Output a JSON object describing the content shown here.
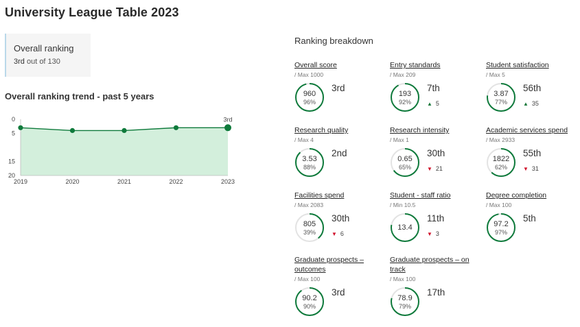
{
  "title": "University League Table 2023",
  "overall": {
    "label": "Overall ranking",
    "rank": "3rd",
    "out_of": "out of 130"
  },
  "trend": {
    "title": "Overall ranking trend - past 5 years"
  },
  "chart_data": {
    "type": "area",
    "x": [
      "2019",
      "2020",
      "2021",
      "2022",
      "2023"
    ],
    "values": [
      3,
      4,
      4,
      3,
      3
    ],
    "y_ticks": [
      "0",
      "5",
      "15",
      "20"
    ],
    "ylim": [
      0,
      20
    ],
    "y_inverted": true,
    "last_label": "3rd",
    "line_color": "#0e7a3b",
    "fill_color": "#d3efdc"
  },
  "breakdown": {
    "title": "Ranking breakdown",
    "metrics": [
      {
        "name": "Overall score",
        "max": "/ Max 1000",
        "value": "960",
        "pct": "96%",
        "pct_num": 96,
        "rank": "3rd",
        "change": "",
        "dir": ""
      },
      {
        "name": "Entry standards",
        "max": "/ Max 209",
        "value": "193",
        "pct": "92%",
        "pct_num": 92,
        "rank": "7th",
        "change": "5",
        "dir": "up"
      },
      {
        "name": "Student satisfaction",
        "max": "/ Max 5",
        "value": "3.87",
        "pct": "77%",
        "pct_num": 77,
        "rank": "56th",
        "change": "35",
        "dir": "up"
      },
      {
        "name": "Research quality",
        "max": "/ Max 4",
        "value": "3.53",
        "pct": "88%",
        "pct_num": 88,
        "rank": "2nd",
        "change": "",
        "dir": ""
      },
      {
        "name": "Research intensity",
        "max": "/ Max 1",
        "value": "0.65",
        "pct": "65%",
        "pct_num": 65,
        "rank": "30th",
        "change": "21",
        "dir": "down"
      },
      {
        "name": "Academic services spend",
        "max": "/ Max 2933",
        "value": "1822",
        "pct": "62%",
        "pct_num": 62,
        "rank": "55th",
        "change": "31",
        "dir": "down"
      },
      {
        "name": "Facilities spend",
        "max": "/ Max 2083",
        "value": "805",
        "pct": "39%",
        "pct_num": 39,
        "rank": "30th",
        "change": "6",
        "dir": "down"
      },
      {
        "name": "Student - staff ratio",
        "max": "/ Min 10.5",
        "value": "13.4",
        "pct": "",
        "pct_num": 78,
        "rank": "11th",
        "change": "3",
        "dir": "down"
      },
      {
        "name": "Degree completion",
        "max": "/ Max 100",
        "value": "97.2",
        "pct": "97%",
        "pct_num": 97,
        "rank": "5th",
        "change": "",
        "dir": ""
      },
      {
        "name": "Graduate prospects – outcomes",
        "max": "/ Max 100",
        "value": "90.2",
        "pct": "90%",
        "pct_num": 90,
        "rank": "3rd",
        "change": "",
        "dir": ""
      },
      {
        "name": "Graduate prospects – on track",
        "max": "/ Max 100",
        "value": "78.9",
        "pct": "79%",
        "pct_num": 79,
        "rank": "17th",
        "change": "",
        "dir": ""
      }
    ]
  },
  "colors": {
    "ring_green": "#0e7a3b",
    "ring_track": "#e3e3e3",
    "up": "#1a7a3c",
    "down": "#d0112b"
  }
}
